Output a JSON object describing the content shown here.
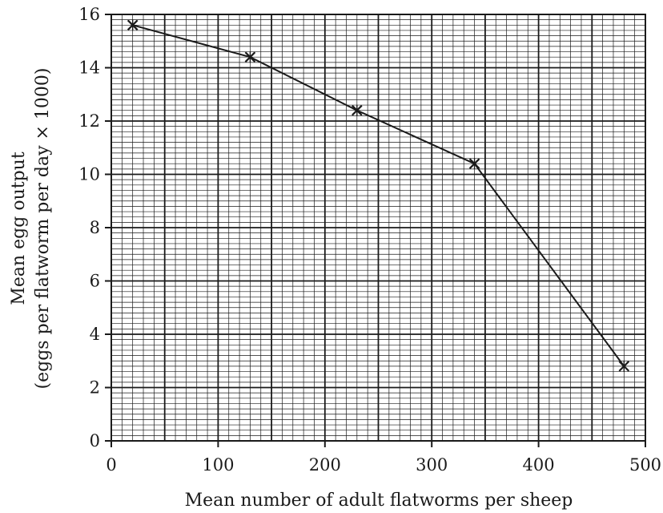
{
  "chart_data": {
    "type": "line",
    "title": "",
    "xlabel": "Mean number of adult flatworms per sheep",
    "ylabel_line1": "Mean egg output",
    "ylabel_line2": "(eggs per flatworm per day × 1000)",
    "xlim": [
      0,
      500
    ],
    "ylim": [
      0,
      16
    ],
    "x_ticks": [
      "0",
      "100",
      "200",
      "300",
      "400",
      "500"
    ],
    "y_ticks": [
      "0",
      "2",
      "4",
      "6",
      "8",
      "10",
      "12",
      "14",
      "16"
    ],
    "grid": true,
    "marker": "star-cross",
    "line_color": "#1a1a1a",
    "series": [
      {
        "x": [
          20,
          130,
          230,
          340,
          480
        ],
        "y": [
          15.6,
          14.4,
          12.4,
          10.4,
          2.8
        ]
      }
    ]
  }
}
